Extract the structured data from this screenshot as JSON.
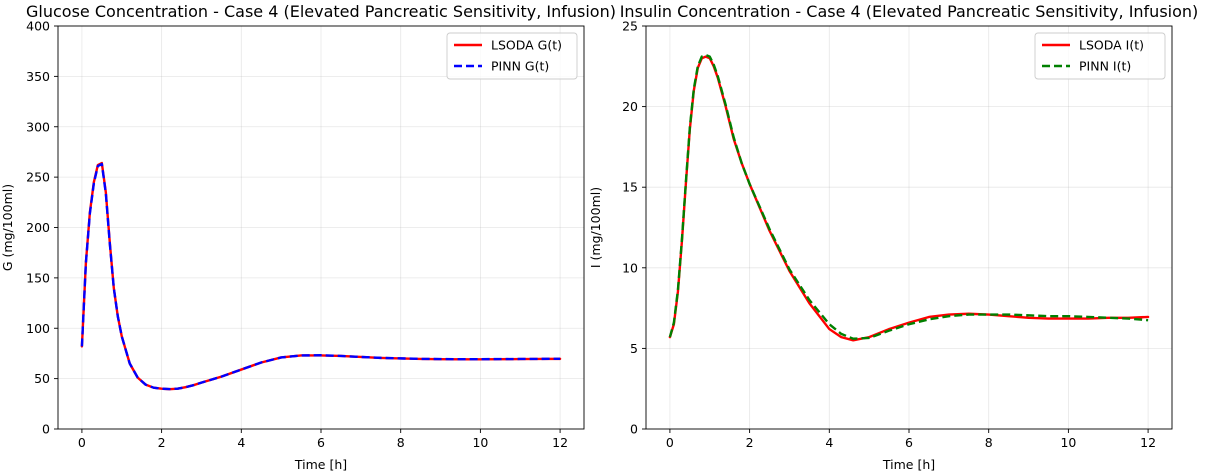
{
  "chart_data": [
    {
      "type": "line",
      "title": "Glucose Concentration - Case 4 (Elevated Pancreatic Sensitivity, Infusion)",
      "xlabel": "Time [h]",
      "ylabel": "G (mg/100ml)",
      "xlim": [
        -0.6,
        12.6
      ],
      "ylim": [
        0,
        400
      ],
      "xticks": [
        0,
        2,
        4,
        6,
        8,
        10,
        12
      ],
      "yticks": [
        0,
        50,
        100,
        150,
        200,
        250,
        300,
        350,
        400
      ],
      "grid": true,
      "legend_position": "top-right",
      "series": [
        {
          "name": "LSODA G(t)",
          "color": "#ff0000",
          "style": "solid",
          "x": [
            0,
            0.1,
            0.2,
            0.3,
            0.4,
            0.5,
            0.6,
            0.7,
            0.8,
            0.9,
            1.0,
            1.2,
            1.4,
            1.6,
            1.8,
            2.0,
            2.2,
            2.4,
            2.6,
            2.8,
            3.0,
            3.5,
            4.0,
            4.5,
            5.0,
            5.5,
            6.0,
            6.5,
            7.0,
            7.5,
            8.0,
            8.5,
            9.0,
            9.5,
            10.0,
            10.5,
            11.0,
            11.5,
            12.0
          ],
          "y": [
            82,
            165,
            215,
            245,
            262,
            264,
            235,
            185,
            140,
            112,
            92,
            65,
            51,
            44,
            41,
            40,
            39.5,
            40,
            41.5,
            43.5,
            46,
            52,
            59,
            66,
            71,
            73,
            73,
            72.5,
            71.5,
            70.5,
            70,
            69.5,
            69.3,
            69.2,
            69.2,
            69.3,
            69.4,
            69.5,
            69.6
          ]
        },
        {
          "name": "PINN G(t)",
          "color": "#0000ff",
          "style": "dashed",
          "x": [
            0,
            0.1,
            0.2,
            0.3,
            0.4,
            0.5,
            0.6,
            0.7,
            0.8,
            0.9,
            1.0,
            1.2,
            1.4,
            1.6,
            1.8,
            2.0,
            2.2,
            2.4,
            2.6,
            2.8,
            3.0,
            3.5,
            4.0,
            4.5,
            5.0,
            5.5,
            6.0,
            6.5,
            7.0,
            7.5,
            8.0,
            8.5,
            9.0,
            9.5,
            10.0,
            10.5,
            11.0,
            11.5,
            12.0
          ],
          "y": [
            82,
            165,
            214,
            244,
            261,
            263,
            234,
            184,
            140,
            112,
            92,
            65,
            51,
            44,
            41,
            40,
            39.6,
            40,
            41.5,
            43.5,
            46,
            52,
            59,
            66,
            71,
            73,
            73.2,
            72.5,
            71.5,
            70.6,
            70.1,
            69.6,
            69.4,
            69.3,
            69.3,
            69.4,
            69.5,
            69.6,
            69.7
          ]
        }
      ]
    },
    {
      "type": "line",
      "title": "Insulin Concentration - Case 4 (Elevated Pancreatic Sensitivity, Infusion)",
      "xlabel": "Time [h]",
      "ylabel": "I (mg/100ml)",
      "xlim": [
        -0.6,
        12.6
      ],
      "ylim": [
        0,
        25
      ],
      "xticks": [
        0,
        2,
        4,
        6,
        8,
        10,
        12
      ],
      "yticks": [
        0,
        5,
        10,
        15,
        20,
        25
      ],
      "grid": true,
      "legend_position": "top-right",
      "series": [
        {
          "name": "LSODA I(t)",
          "color": "#ff0000",
          "style": "solid",
          "x": [
            0,
            0.1,
            0.2,
            0.3,
            0.4,
            0.5,
            0.6,
            0.7,
            0.8,
            0.9,
            1.0,
            1.1,
            1.2,
            1.4,
            1.6,
            1.8,
            2.0,
            2.5,
            3.0,
            3.5,
            4.0,
            4.3,
            4.6,
            5.0,
            5.5,
            6.0,
            6.5,
            7.0,
            7.5,
            8.0,
            8.5,
            9.0,
            9.5,
            10.0,
            10.5,
            11.0,
            11.5,
            12.0
          ],
          "y": [
            5.7,
            6.5,
            8.5,
            11.6,
            15.2,
            18.6,
            21.0,
            22.4,
            23.0,
            23.1,
            23.0,
            22.5,
            21.8,
            20.0,
            18.0,
            16.5,
            15.2,
            12.3,
            9.8,
            7.8,
            6.2,
            5.7,
            5.5,
            5.7,
            6.2,
            6.6,
            6.95,
            7.1,
            7.15,
            7.1,
            7.0,
            6.9,
            6.85,
            6.85,
            6.85,
            6.9,
            6.9,
            6.95
          ]
        },
        {
          "name": "PINN I(t)",
          "color": "#008000",
          "style": "dashed",
          "x": [
            0,
            0.1,
            0.2,
            0.3,
            0.4,
            0.5,
            0.6,
            0.7,
            0.8,
            0.9,
            1.0,
            1.1,
            1.2,
            1.4,
            1.6,
            1.8,
            2.0,
            2.5,
            3.0,
            3.5,
            4.0,
            4.3,
            4.6,
            5.0,
            5.5,
            6.0,
            6.5,
            7.0,
            7.5,
            8.0,
            8.5,
            9.0,
            9.5,
            10.0,
            10.5,
            11.0,
            11.5,
            12.0
          ],
          "y": [
            5.7,
            6.6,
            8.6,
            11.7,
            15.3,
            18.7,
            21.1,
            22.5,
            23.1,
            23.2,
            23.1,
            22.6,
            21.9,
            20.1,
            18.1,
            16.5,
            15.2,
            12.4,
            9.9,
            8.0,
            6.5,
            5.9,
            5.6,
            5.65,
            6.1,
            6.5,
            6.8,
            7.0,
            7.1,
            7.1,
            7.1,
            7.05,
            7.0,
            7.0,
            6.95,
            6.9,
            6.85,
            6.75
          ]
        }
      ]
    }
  ]
}
